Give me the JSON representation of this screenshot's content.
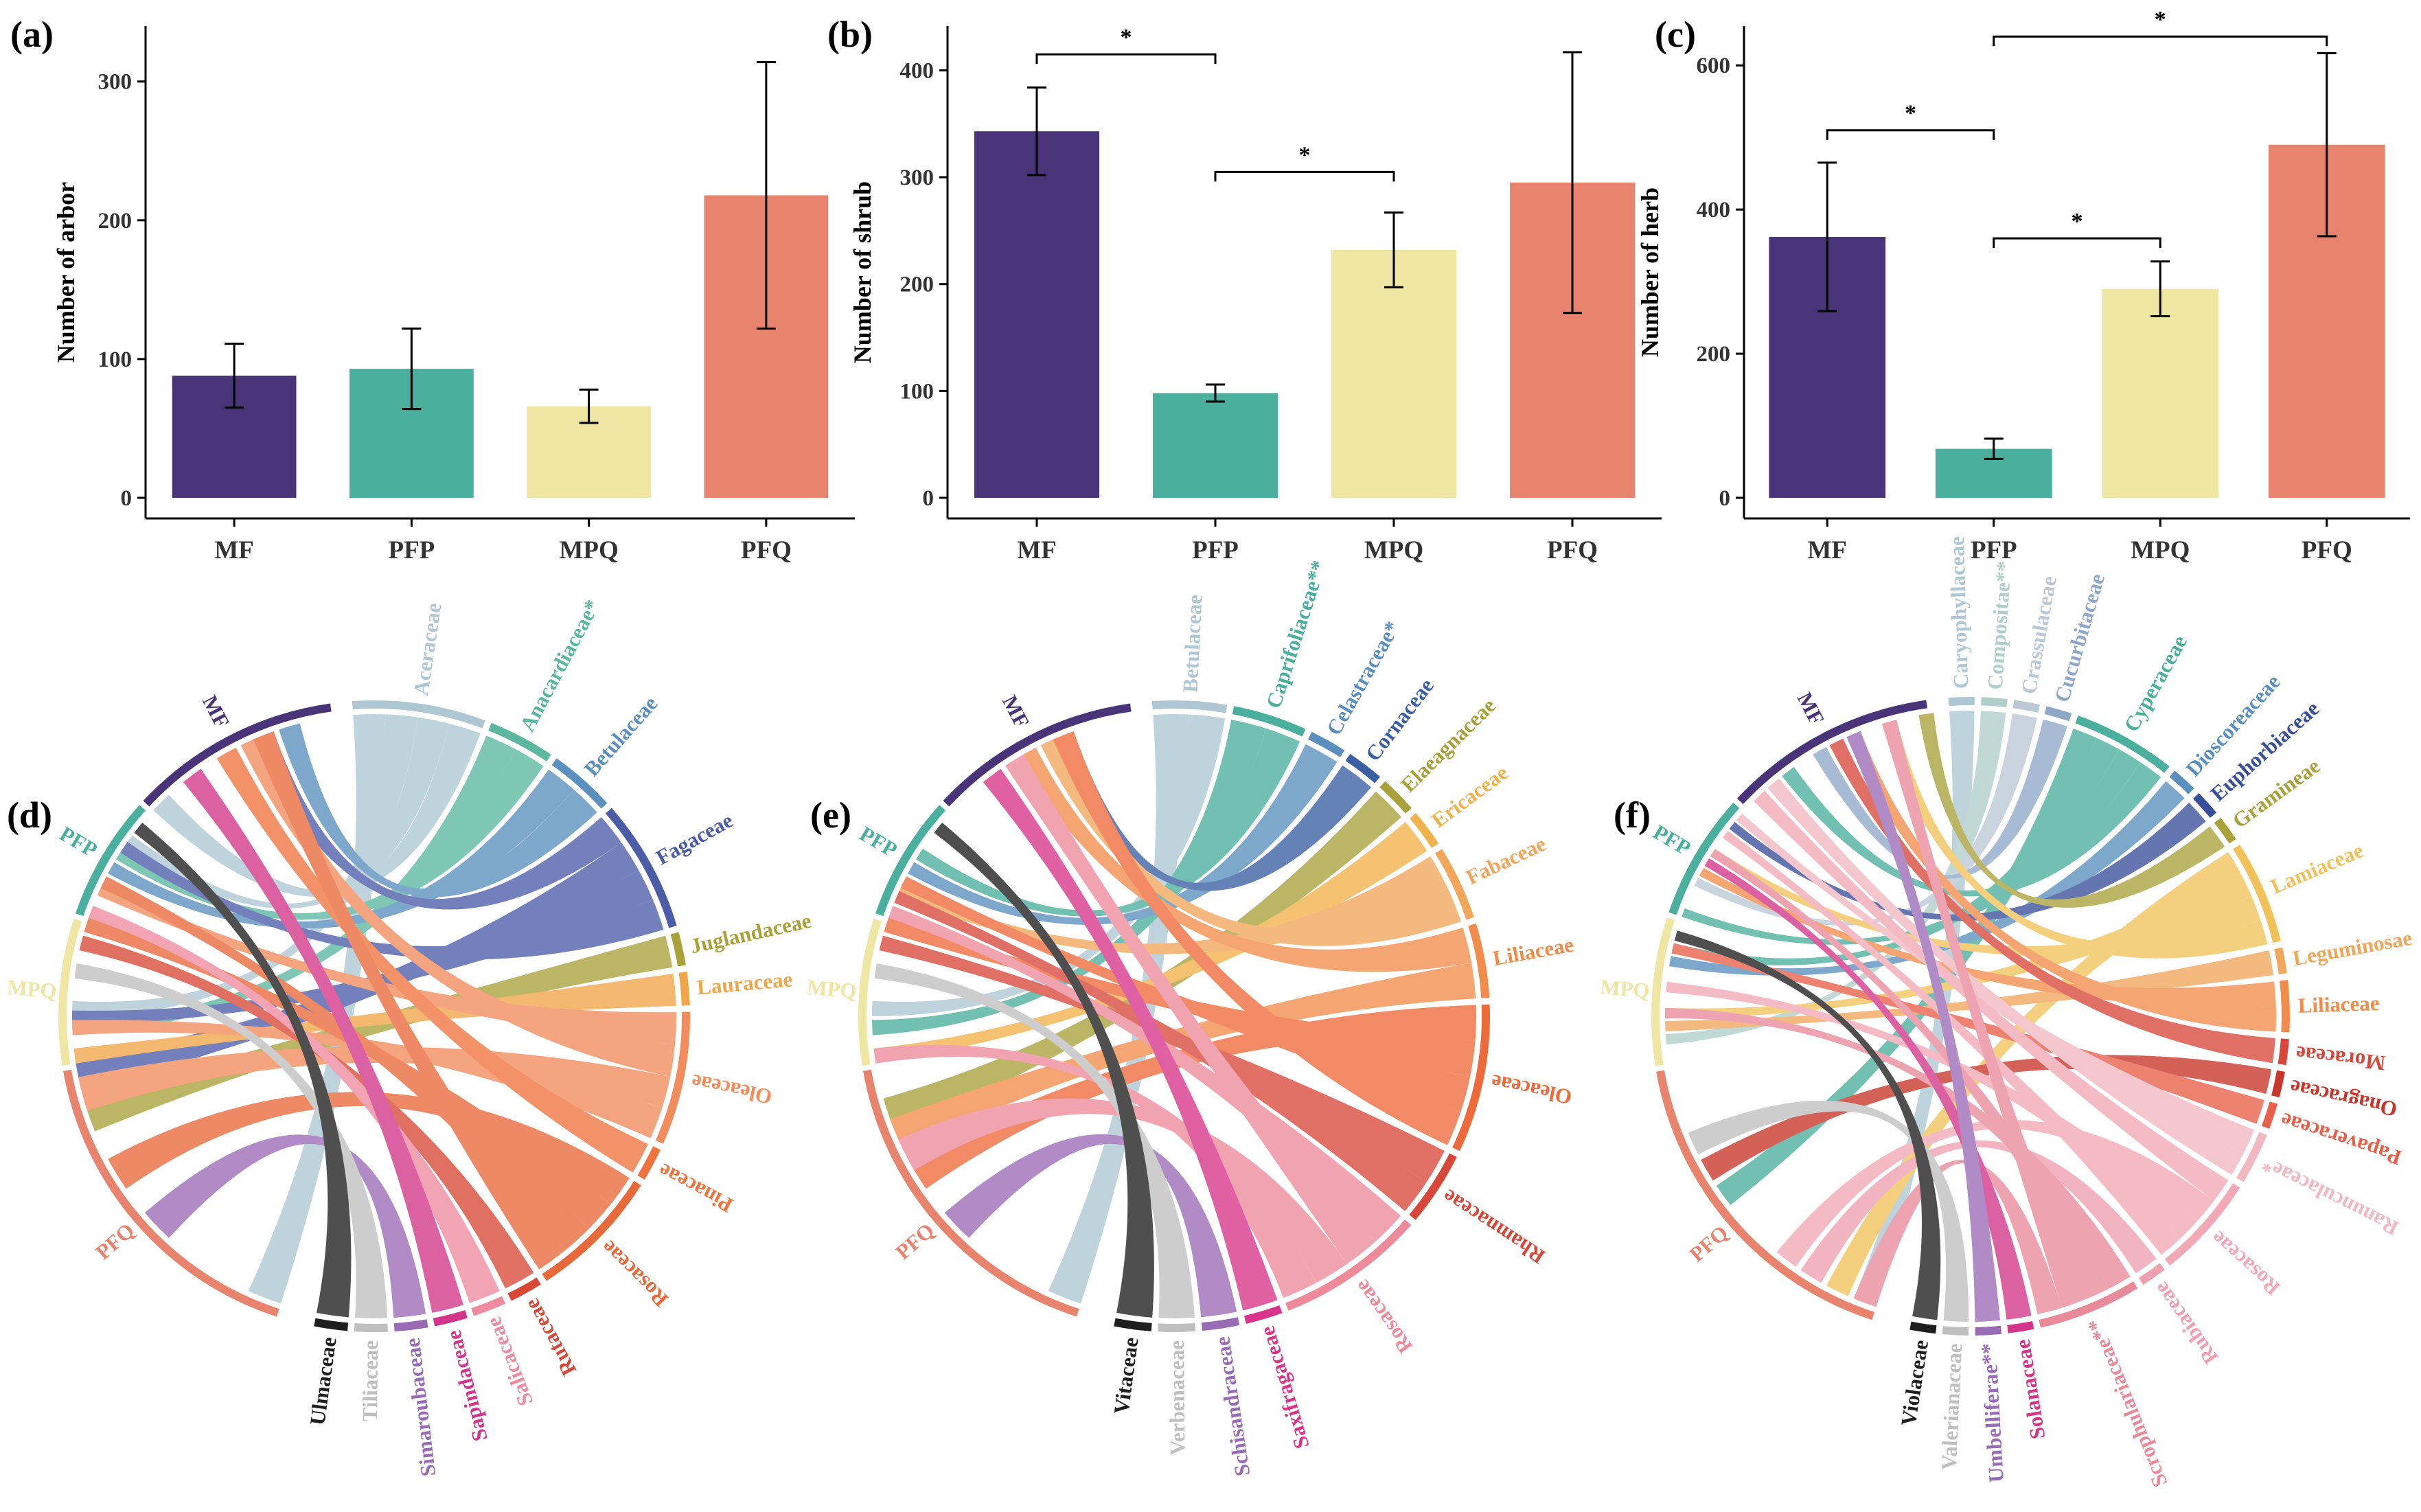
{
  "chart_data": [
    {
      "panel": "(a)",
      "type": "bar",
      "ylabel": "Number of arbor",
      "categories": [
        "MF",
        "PFP",
        "MPQ",
        "PFQ"
      ],
      "values": [
        88,
        93,
        66,
        218
      ],
      "errors": [
        23,
        29,
        12,
        96
      ],
      "ylim": [
        0,
        335
      ],
      "yticks": [
        "0",
        "100",
        "200",
        "300"
      ],
      "significance": []
    },
    {
      "panel": "(b)",
      "type": "bar",
      "ylabel": "Number of shrub",
      "categories": [
        "MF",
        "PFP",
        "MPQ",
        "PFQ"
      ],
      "values": [
        343,
        98,
        232,
        295
      ],
      "errors": [
        41,
        8,
        35,
        122
      ],
      "ylim": [
        0,
        435
      ],
      "yticks": [
        "0",
        "100",
        "200",
        "300",
        "400"
      ],
      "significance": [
        {
          "from": 0,
          "to": 1,
          "y": 415,
          "label": "*"
        },
        {
          "from": 1,
          "to": 2,
          "y": 305,
          "label": "*"
        }
      ]
    },
    {
      "panel": "(c)",
      "type": "bar",
      "ylabel": "Number of herb",
      "categories": [
        "MF",
        "PFP",
        "MPQ",
        "PFQ"
      ],
      "values": [
        362,
        68,
        290,
        490
      ],
      "errors": [
        103,
        14,
        38,
        127
      ],
      "ylim": [
        0,
        645
      ],
      "yticks": [
        "0",
        "200",
        "400",
        "600"
      ],
      "significance": [
        {
          "from": 0,
          "to": 1,
          "y": 510,
          "label": "*"
        },
        {
          "from": 1,
          "to": 2,
          "y": 360,
          "label": "*"
        },
        {
          "from": 1,
          "to": 3,
          "y": 640,
          "label": "*"
        }
      ]
    },
    {
      "panel": "(d)",
      "type": "chord",
      "groups": [
        {
          "label": "PFQ",
          "color": "#E8836E"
        },
        {
          "label": "MPQ",
          "color": "#F0E6A3"
        },
        {
          "label": "PFP",
          "color": "#4BAF9D"
        },
        {
          "label": "MF",
          "color": "#4A3479"
        }
      ],
      "families": [
        {
          "label": "Aceraceae",
          "color": "#AEC7D3"
        },
        {
          "label": "Anacardiaceae*",
          "color": "#5BB89F"
        },
        {
          "label": "Betulaceae",
          "color": "#5A8FBE"
        },
        {
          "label": "Fagaceae",
          "color": "#4C5DA8"
        },
        {
          "label": "Juglandaceae",
          "color": "#A9A23A"
        },
        {
          "label": "Lauraceae",
          "color": "#F2A64A"
        },
        {
          "label": "Oleaceae",
          "color": "#F28C5C"
        },
        {
          "label": "Pinaceae",
          "color": "#F0733E"
        },
        {
          "label": "Rosaceae",
          "color": "#E86A3A"
        },
        {
          "label": "Rutaceae",
          "color": "#D84836"
        },
        {
          "label": "Salicaceae",
          "color": "#EF8AA0"
        },
        {
          "label": "Sapindaceae",
          "color": "#D2358A"
        },
        {
          "label": "Simaroubaceae",
          "color": "#9A6BB5"
        },
        {
          "label": "Tiliaceae",
          "color": "#BFBFBF"
        },
        {
          "label": "Ulmaceae",
          "color": "#1E1E1E"
        }
      ]
    },
    {
      "panel": "(e)",
      "type": "chord",
      "groups": [
        {
          "label": "PFQ",
          "color": "#E8836E"
        },
        {
          "label": "MPQ",
          "color": "#F0E6A3"
        },
        {
          "label": "PFP",
          "color": "#4BAF9D"
        },
        {
          "label": "MF",
          "color": "#4A3479"
        }
      ],
      "families": [
        {
          "label": "Betulaceae",
          "color": "#AEC7D3"
        },
        {
          "label": "Caprifoliaceae**",
          "color": "#4BAF9D"
        },
        {
          "label": "Celastraceae*",
          "color": "#5A8FBE"
        },
        {
          "label": "Cornaceae",
          "color": "#3A5FA3"
        },
        {
          "label": "Elaeagnaceae",
          "color": "#A9A23A"
        },
        {
          "label": "Ericaceae",
          "color": "#F2B24A"
        },
        {
          "label": "Fabaceae",
          "color": "#F2A65A"
        },
        {
          "label": "Liliaceae",
          "color": "#F28C4A"
        },
        {
          "label": "Oleaceae",
          "color": "#EE6A3A"
        },
        {
          "label": "Rhamnaceae",
          "color": "#D8483A"
        },
        {
          "label": "Rosaceae",
          "color": "#EF8A9A"
        },
        {
          "label": "Saxifragaceae",
          "color": "#D8358A"
        },
        {
          "label": "Schisandraceae",
          "color": "#9A6BB5"
        },
        {
          "label": "Verbenaceae",
          "color": "#BFBFBF"
        },
        {
          "label": "Vitaceae",
          "color": "#1E1E1E"
        }
      ]
    },
    {
      "panel": "(f)",
      "type": "chord",
      "groups": [
        {
          "label": "PFQ",
          "color": "#E8836E"
        },
        {
          "label": "MPQ",
          "color": "#F0E6A3"
        },
        {
          "label": "PFP",
          "color": "#4BAF9D"
        },
        {
          "label": "MF",
          "color": "#4A3479"
        }
      ],
      "families": [
        {
          "label": "Caryophyllaceae",
          "color": "#AEC7D3"
        },
        {
          "label": "Compositae**",
          "color": "#AFCFC8"
        },
        {
          "label": "Crassulaceae",
          "color": "#BCC8D6"
        },
        {
          "label": "Cucurbitaceae",
          "color": "#8FA8C8"
        },
        {
          "label": "Cyperaceae",
          "color": "#4BAF9D"
        },
        {
          "label": "Dioscoreaceae",
          "color": "#5A8FBE"
        },
        {
          "label": "Euphorbiaceae",
          "color": "#3A4F9A"
        },
        {
          "label": "Gramineae",
          "color": "#A9A23A"
        },
        {
          "label": "Lamiaceae",
          "color": "#F2C25A"
        },
        {
          "label": "Leguminosae",
          "color": "#F2A65A"
        },
        {
          "label": "Liliaceae",
          "color": "#F28C4A"
        },
        {
          "label": "Moraceae",
          "color": "#D8483A"
        },
        {
          "label": "Onagraceae",
          "color": "#C8352A"
        },
        {
          "label": "Papaveraceae",
          "color": "#E8604A"
        },
        {
          "label": "Ranunculaceae*",
          "color": "#F2B8C2"
        },
        {
          "label": "Rosaceae",
          "color": "#F2A8B6"
        },
        {
          "label": "Rubiaceae",
          "color": "#EFA0B0"
        },
        {
          "label": "Scrophulariaceae**",
          "color": "#E88A9A"
        },
        {
          "label": "Solanaceae",
          "color": "#D2358A"
        },
        {
          "label": "Umbelliferae**",
          "color": "#9A6BB5"
        },
        {
          "label": "Valerianaceae",
          "color": "#BFBFBF"
        },
        {
          "label": "Violaceae",
          "color": "#1E1E1E"
        }
      ]
    }
  ]
}
